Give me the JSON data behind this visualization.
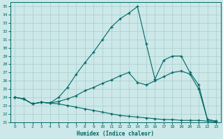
{
  "xlabel": "Humidex (Indice chaleur)",
  "background_color": "#cce8e8",
  "grid_color": "#aacccc",
  "line_color": "#006666",
  "xlim": [
    -0.5,
    23.5
  ],
  "ylim": [
    21,
    35.5
  ],
  "xticks": [
    0,
    1,
    2,
    3,
    4,
    5,
    6,
    7,
    8,
    9,
    10,
    11,
    12,
    13,
    14,
    15,
    16,
    17,
    18,
    19,
    20,
    21,
    22,
    23
  ],
  "yticks": [
    21,
    22,
    23,
    24,
    25,
    26,
    27,
    28,
    29,
    30,
    31,
    32,
    33,
    34,
    35
  ],
  "line1_x": [
    0,
    1,
    2,
    3,
    4,
    5,
    6,
    7,
    8,
    9,
    10,
    11,
    12,
    13,
    14,
    15,
    16,
    17,
    18,
    19,
    20,
    21,
    22,
    23
  ],
  "line1_y": [
    24.0,
    23.8,
    23.2,
    23.4,
    23.3,
    24.0,
    25.2,
    26.8,
    28.2,
    29.5,
    31.0,
    32.5,
    33.5,
    34.2,
    35.0,
    30.5,
    26.2,
    28.5,
    29.0,
    29.0,
    27.0,
    25.5,
    21.3,
    21.1
  ],
  "line2_x": [
    0,
    1,
    2,
    3,
    4,
    5,
    6,
    7,
    8,
    9,
    10,
    11,
    12,
    13,
    14,
    15,
    16,
    17,
    18,
    19,
    20,
    21,
    22,
    23
  ],
  "line2_y": [
    24.0,
    23.8,
    23.2,
    23.4,
    23.3,
    23.5,
    23.8,
    24.2,
    24.8,
    25.2,
    25.7,
    26.1,
    26.6,
    27.0,
    25.8,
    25.5,
    26.0,
    26.5,
    27.0,
    27.2,
    26.8,
    25.0,
    21.3,
    21.1
  ],
  "line3_x": [
    0,
    1,
    2,
    3,
    4,
    5,
    6,
    7,
    8,
    9,
    10,
    11,
    12,
    13,
    14,
    15,
    16,
    17,
    18,
    19,
    20,
    21,
    22,
    23
  ],
  "line3_y": [
    24.0,
    23.8,
    23.2,
    23.4,
    23.3,
    23.2,
    23.0,
    22.8,
    22.6,
    22.4,
    22.2,
    22.0,
    21.8,
    21.7,
    21.6,
    21.5,
    21.4,
    21.3,
    21.3,
    21.2,
    21.2,
    21.2,
    21.1,
    21.0
  ]
}
